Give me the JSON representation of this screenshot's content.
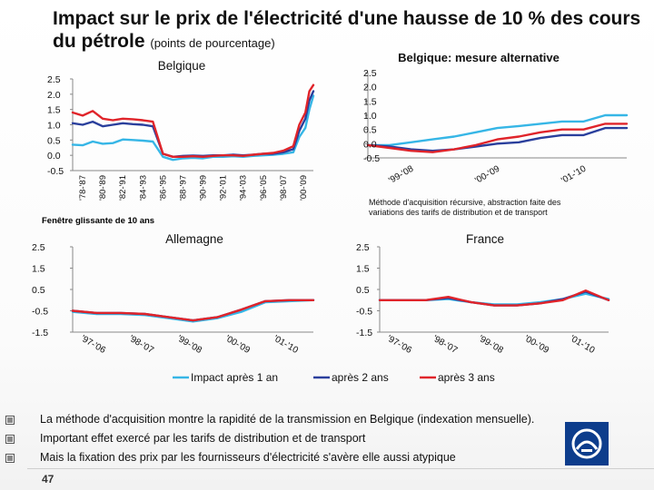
{
  "slide": {
    "title": "Impact sur le prix de l'électricité d'une hausse de 10 % des cours du pétrole",
    "title_sub": "(points de pourcentage)",
    "page_number": "47",
    "bullets": [
      "La méthode d'acquisition montre la rapidité de la transmission en Belgique (indexation mensuelle).",
      "Important effet exercé par les tarifs de distribution et de transport",
      "Mais la fixation des prix par les fournisseurs d'électricité s'avère elle aussi atypique"
    ],
    "annotations": {
      "rolling_window": "Fenêtre glissante de 10 ans",
      "method_note": "Méthode d'acquisition récursive, abstraction faite des variations des tarifs de distribution et de transport"
    },
    "legend": [
      {
        "label": "Impact après 1 an",
        "color": "#36b6e6"
      },
      {
        "label": "après 2 ans",
        "color": "#2a3f9c"
      },
      {
        "label": "après 3 ans",
        "color": "#e0242a"
      }
    ]
  },
  "chart_data": [
    {
      "type": "line",
      "title": "Belgique",
      "ylim": [
        -0.5,
        2.5
      ],
      "yticks": [
        "2.5",
        "2.0",
        "1.5",
        "1.0",
        "0.5",
        "0.0",
        "-0.5"
      ],
      "xticks": [
        "'78-'87",
        "'80-'89",
        "'82-'91",
        "'84-'93",
        "'86-'95",
        "'88-'97",
        "'90-'99",
        "'92-'01",
        "'94-'03",
        "'96-'05",
        "'98-'07",
        "'00-'09"
      ],
      "x": [
        0,
        0.5,
        1,
        1.5,
        2,
        2.5,
        3,
        3.5,
        4,
        4.5,
        5,
        5.5,
        6,
        6.5,
        7,
        7.5,
        8,
        8.5,
        9,
        9.5,
        10,
        10.5,
        11,
        11.3,
        11.6,
        11.8,
        12
      ],
      "series": [
        {
          "name": "Impact après 1 an",
          "color": "#36b6e6",
          "values": [
            0.35,
            0.33,
            0.45,
            0.38,
            0.4,
            0.52,
            0.5,
            0.48,
            0.45,
            -0.05,
            -0.15,
            -0.1,
            -0.08,
            -0.1,
            -0.05,
            -0.05,
            -0.03,
            -0.05,
            -0.02,
            0.0,
            0.02,
            0.05,
            0.1,
            0.6,
            0.9,
            1.5,
            1.95
          ]
        },
        {
          "name": "après 2 ans",
          "color": "#2a3f9c",
          "values": [
            1.05,
            1.0,
            1.1,
            0.95,
            1.0,
            1.05,
            1.02,
            1.0,
            0.95,
            0.05,
            -0.05,
            -0.02,
            -0.01,
            -0.02,
            0.0,
            0.0,
            0.02,
            0.0,
            0.02,
            0.05,
            0.05,
            0.1,
            0.2,
            0.8,
            1.2,
            1.8,
            2.1
          ]
        },
        {
          "name": "après 3 ans",
          "color": "#e0242a",
          "values": [
            1.4,
            1.3,
            1.45,
            1.2,
            1.15,
            1.2,
            1.18,
            1.15,
            1.1,
            0.05,
            -0.05,
            -0.05,
            -0.03,
            -0.05,
            -0.02,
            0.0,
            0.0,
            -0.02,
            0.02,
            0.05,
            0.08,
            0.15,
            0.3,
            1.0,
            1.4,
            2.1,
            2.3
          ]
        }
      ]
    },
    {
      "type": "line",
      "title": "Belgique: mesure alternative",
      "ylim": [
        -0.5,
        2.5
      ],
      "yticks": [
        "2.5",
        "2.0",
        "1.5",
        "1.0",
        "0.5",
        "0.0",
        "-0.5"
      ],
      "xticks": [
        "'99-'08",
        "'00-'09",
        "'01-'10"
      ],
      "x": [
        0,
        0.5,
        1,
        1.5,
        2,
        2.5,
        3,
        3.5,
        4,
        4.5,
        5,
        5.5,
        6
      ],
      "series": [
        {
          "name": "Impact après 1 an",
          "color": "#36b6e6",
          "values": [
            -0.05,
            -0.05,
            0.05,
            0.15,
            0.25,
            0.4,
            0.55,
            0.62,
            0.7,
            0.78,
            0.78,
            1.0,
            1.0
          ]
        },
        {
          "name": "après 2 ans",
          "color": "#2a3f9c",
          "values": [
            -0.05,
            -0.1,
            -0.2,
            -0.25,
            -0.2,
            -0.1,
            0.0,
            0.05,
            0.2,
            0.3,
            0.3,
            0.55,
            0.55
          ]
        },
        {
          "name": "après 3 ans",
          "color": "#e0242a",
          "values": [
            -0.05,
            -0.15,
            -0.25,
            -0.3,
            -0.2,
            -0.05,
            0.15,
            0.25,
            0.4,
            0.5,
            0.5,
            0.7,
            0.7
          ]
        }
      ]
    },
    {
      "type": "line",
      "title": "Allemagne",
      "ylim": [
        -1.5,
        2.5
      ],
      "yticks": [
        "2.5",
        "1.5",
        "0.5",
        "-0.5",
        "-1.5"
      ],
      "xticks": [
        "'97-'06",
        "'98-'07",
        "'99-'08",
        "'00-'09",
        "'01-'10"
      ],
      "x": [
        0,
        0.5,
        1,
        1.5,
        2,
        2.5,
        3,
        3.5,
        4,
        4.5,
        5
      ],
      "series": [
        {
          "name": "Impact après 1 an",
          "color": "#36b6e6",
          "values": [
            -0.55,
            -0.65,
            -0.65,
            -0.7,
            -0.85,
            -1.0,
            -0.85,
            -0.55,
            -0.1,
            -0.05,
            0.0
          ]
        },
        {
          "name": "après 2 ans",
          "color": "#2a3f9c",
          "values": [
            -0.5,
            -0.6,
            -0.6,
            -0.65,
            -0.8,
            -0.95,
            -0.8,
            -0.45,
            -0.05,
            0.0,
            0.0
          ]
        },
        {
          "name": "après 3 ans",
          "color": "#e0242a",
          "values": [
            -0.5,
            -0.6,
            -0.6,
            -0.65,
            -0.8,
            -0.95,
            -0.8,
            -0.45,
            -0.05,
            0.0,
            0.0
          ]
        }
      ]
    },
    {
      "type": "line",
      "title": "France",
      "ylim": [
        -1.5,
        2.5
      ],
      "yticks": [
        "2.5",
        "1.5",
        "0.5",
        "-0.5",
        "-1.5"
      ],
      "xticks": [
        "'97-'06",
        "'98-'07",
        "'99-'08",
        "'00-'09",
        "'01-'10"
      ],
      "x": [
        0,
        0.5,
        1,
        1.5,
        2,
        2.5,
        3,
        3.5,
        4,
        4.5,
        5
      ],
      "series": [
        {
          "name": "Impact après 1 an",
          "color": "#36b6e6",
          "values": [
            0.0,
            0.0,
            0.0,
            0.05,
            -0.1,
            -0.2,
            -0.2,
            -0.1,
            0.05,
            0.3,
            0.05
          ]
        },
        {
          "name": "après 2 ans",
          "color": "#2a3f9c",
          "values": [
            0.0,
            0.0,
            0.0,
            0.1,
            -0.1,
            -0.25,
            -0.25,
            -0.15,
            0.05,
            0.4,
            0.0
          ]
        },
        {
          "name": "après 3 ans",
          "color": "#e0242a",
          "values": [
            0.0,
            0.0,
            0.0,
            0.15,
            -0.1,
            -0.25,
            -0.25,
            -0.15,
            0.0,
            0.45,
            0.0
          ]
        }
      ]
    }
  ]
}
